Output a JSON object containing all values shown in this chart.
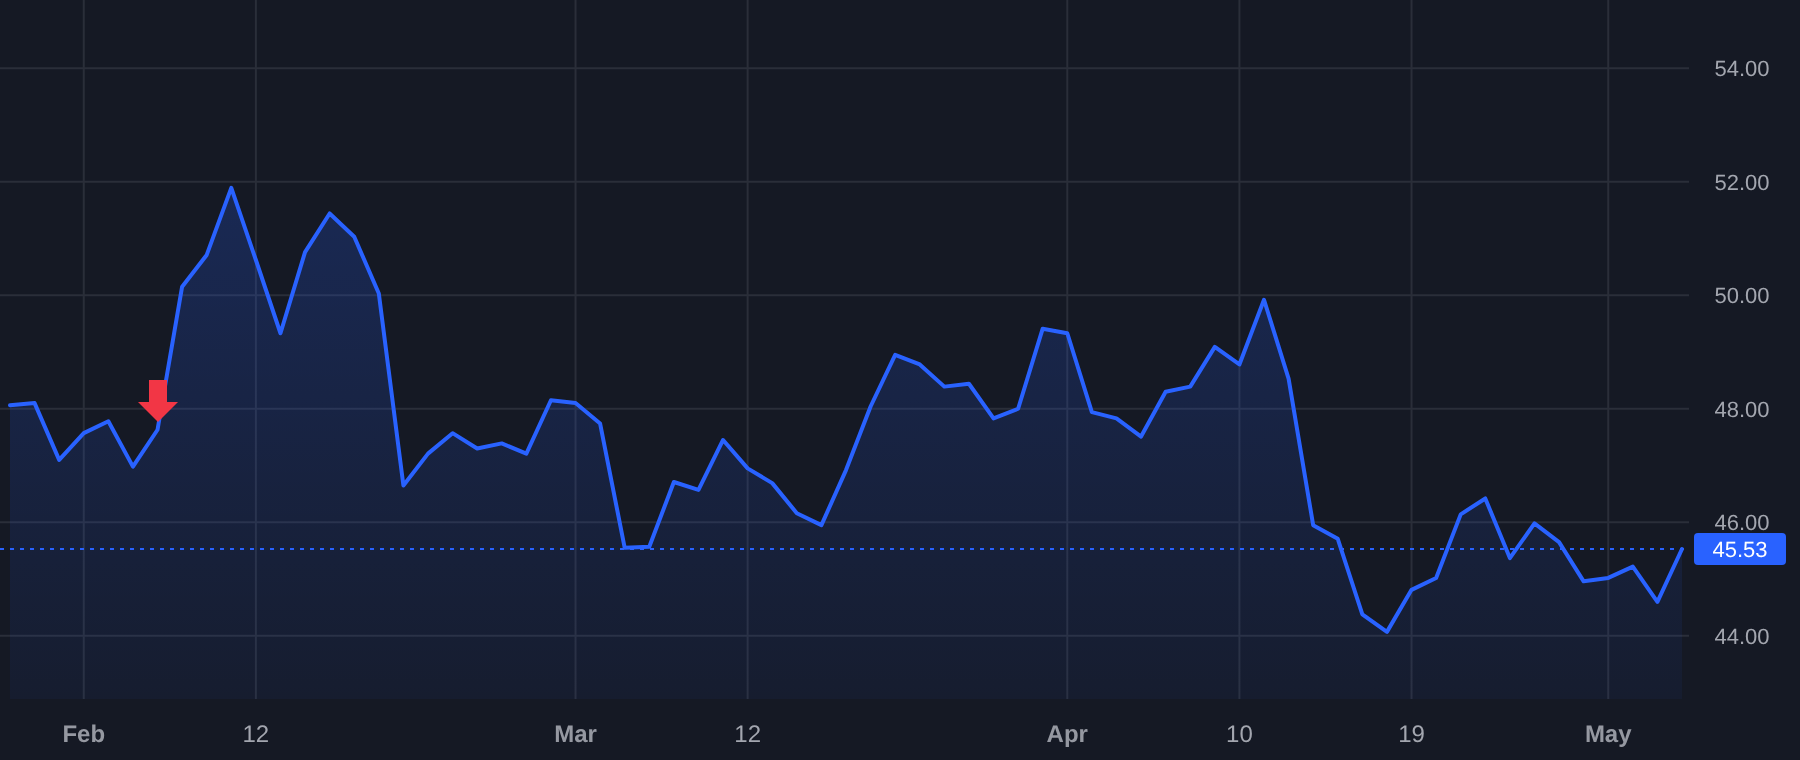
{
  "chart_data": {
    "type": "area",
    "categories": [
      null,
      null,
      null,
      "Feb",
      null,
      null,
      null,
      null,
      null,
      null,
      "12",
      null,
      null,
      null,
      null,
      null,
      null,
      null,
      null,
      null,
      null,
      null,
      null,
      "Mar",
      null,
      null,
      null,
      null,
      null,
      null,
      "12",
      null,
      null,
      null,
      null,
      null,
      null,
      null,
      null,
      null,
      null,
      null,
      null,
      "Apr",
      null,
      null,
      null,
      null,
      null,
      null,
      "10",
      null,
      null,
      null,
      null,
      null,
      null,
      "19",
      null,
      null,
      null,
      null,
      null,
      null,
      null,
      "May",
      null,
      null,
      null
    ],
    "series": [
      {
        "color": "#2962ff",
        "values": [
          48.06,
          48.1,
          47.1,
          47.57,
          47.78,
          46.98,
          47.63,
          50.15,
          50.71,
          51.89,
          50.62,
          49.33,
          50.76,
          51.44,
          51.03,
          50.03,
          46.65,
          47.21,
          47.57,
          47.3,
          47.39,
          47.21,
          48.15,
          48.1,
          47.74,
          45.55,
          45.57,
          46.71,
          46.57,
          47.45,
          46.95,
          46.69,
          46.16,
          45.95,
          46.92,
          48.04,
          48.95,
          48.78,
          48.39,
          48.44,
          47.83,
          48.0,
          49.41,
          49.33,
          47.94,
          47.83,
          47.51,
          48.3,
          48.39,
          49.09,
          48.78,
          49.92,
          48.53,
          45.95,
          45.71,
          44.38,
          44.07,
          44.81,
          45.02,
          46.14,
          46.42,
          45.37,
          45.98,
          45.65,
          44.96,
          45.02,
          45.22,
          44.6,
          45.53
        ]
      }
    ],
    "ylim": [
      42.87,
      55.2
    ],
    "yticks": [
      {
        "value": 44,
        "label": "44.00"
      },
      {
        "value": 46,
        "label": "46.00"
      },
      {
        "value": 48,
        "label": "48.00"
      },
      {
        "value": 50,
        "label": "50.00"
      },
      {
        "value": 52,
        "label": "52.00"
      },
      {
        "value": 54,
        "label": "54.00"
      }
    ],
    "grid": true,
    "ref_lines": [
      {
        "axis": "y",
        "value": 45.53,
        "label": "45.53",
        "color": "#2962ff",
        "line_style": "dotted"
      }
    ]
  }
}
